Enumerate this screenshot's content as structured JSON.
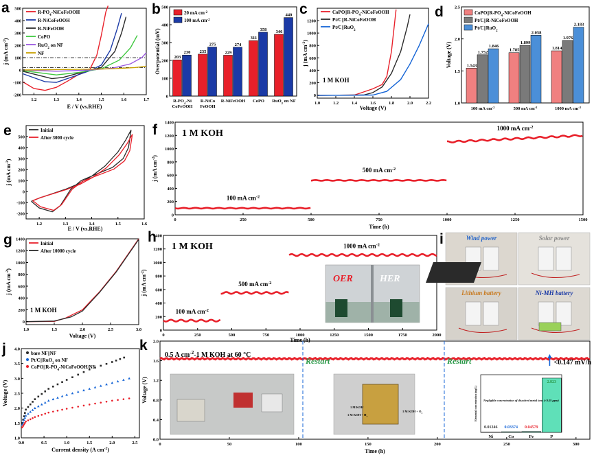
{
  "colors": {
    "red": "#e8202a",
    "navy": "#1b3aa6",
    "black": "#2b2b2b",
    "green": "#40c840",
    "violet": "#9b59e0",
    "olive": "#c8a000",
    "blue": "#1464d6",
    "grey": "#666666",
    "pink": "#f08080",
    "steel": "#7a7a7a",
    "sky": "#4b8fd8"
  },
  "panel_letters": {
    "a": "a",
    "b": "b",
    "c": "c",
    "d": "d",
    "e": "e",
    "f": "f",
    "g": "g",
    "h": "h",
    "i": "i",
    "j": "j",
    "k": "k"
  },
  "chart_data": [
    {
      "panel": "a",
      "type": "line",
      "xlabel": "E / V (vs.RHE)",
      "ylabel": "j (mA cm⁻²)",
      "xlim": [
        1.15,
        1.7
      ],
      "ylim": [
        -200,
        500
      ],
      "xticks": [
        "1.2",
        "1.3",
        "1.4",
        "1.5",
        "1.6",
        "1.7"
      ],
      "yticks": [
        "-200",
        "-100",
        "0",
        "100",
        "200",
        "300",
        "400",
        "500"
      ],
      "series": [
        {
          "name": "R-PO₄-NiCoFeOOH",
          "color": "#e8202a",
          "points": [
            [
              1.15,
              -95
            ],
            [
              1.2,
              -150
            ],
            [
              1.25,
              -165
            ],
            [
              1.3,
              -140
            ],
            [
              1.35,
              -90
            ],
            [
              1.4,
              -35
            ],
            [
              1.45,
              10
            ],
            [
              1.48,
              120
            ],
            [
              1.5,
              280
            ],
            [
              1.52,
              470
            ],
            [
              1.53,
              520
            ]
          ]
        },
        {
          "name": "R-NiCoFeOOH",
          "color": "#1b3aa6",
          "points": [
            [
              1.15,
              -30
            ],
            [
              1.25,
              -95
            ],
            [
              1.3,
              -100
            ],
            [
              1.38,
              -50
            ],
            [
              1.45,
              -5
            ],
            [
              1.5,
              40
            ],
            [
              1.54,
              160
            ],
            [
              1.57,
              330
            ],
            [
              1.59,
              460
            ]
          ]
        },
        {
          "name": "R-NiFeOOH",
          "color": "#2b2b2b",
          "points": [
            [
              1.15,
              -10
            ],
            [
              1.28,
              -70
            ],
            [
              1.33,
              -60
            ],
            [
              1.42,
              -15
            ],
            [
              1.5,
              20
            ],
            [
              1.56,
              150
            ],
            [
              1.59,
              300
            ],
            [
              1.61,
              430
            ]
          ]
        },
        {
          "name": "CoPO",
          "color": "#40c840",
          "points": [
            [
              1.15,
              -5
            ],
            [
              1.3,
              -40
            ],
            [
              1.4,
              -20
            ],
            [
              1.5,
              10
            ],
            [
              1.58,
              80
            ],
            [
              1.63,
              180
            ],
            [
              1.66,
              280
            ]
          ]
        },
        {
          "name": "RuO₂ on NF",
          "color": "#9b59e0",
          "points": [
            [
              1.15,
              0
            ],
            [
              1.3,
              -10
            ],
            [
              1.45,
              0
            ],
            [
              1.55,
              15
            ],
            [
              1.63,
              50
            ],
            [
              1.68,
              100
            ],
            [
              1.7,
              140
            ]
          ]
        },
        {
          "name": "NF",
          "color": "#c8a000",
          "points": [
            [
              1.15,
              0
            ],
            [
              1.4,
              5
            ],
            [
              1.55,
              10
            ],
            [
              1.65,
              20
            ],
            [
              1.7,
              30
            ]
          ]
        }
      ],
      "reference_lines": [
        100,
        20
      ]
    },
    {
      "panel": "b",
      "type": "bar",
      "ylabel": "Overpotential (mV)",
      "ylim": [
        0,
        500
      ],
      "yticks": [
        "0",
        "100",
        "200",
        "300",
        "400",
        "500"
      ],
      "categories": [
        "R-PO₄-Ni\nCoFeOOH",
        "R-NiCo\nFeOOH",
        "R-NiFeOOH",
        "CoPO",
        "RuO₂ on NF"
      ],
      "series": [
        {
          "name": "20 mA cm⁻²",
          "color": "#e8202a",
          "values": [
            203,
            235,
            229,
            311,
            346
          ]
        },
        {
          "name": "100 mA cm⁻²",
          "color": "#1b3aa6",
          "values": [
            230,
            275,
            274,
            358,
            440
          ]
        }
      ],
      "labels": [
        [
          "203",
          "230"
        ],
        [
          "235",
          "275"
        ],
        [
          "229",
          "274"
        ],
        [
          "311",
          "358"
        ],
        [
          "346",
          "440"
        ]
      ]
    },
    {
      "panel": "c",
      "type": "line",
      "xlabel": "Voltage (V)",
      "ylabel": "j (mA cm⁻²)",
      "xlim": [
        1.0,
        2.2
      ],
      "ylim": [
        -50,
        1400
      ],
      "xticks": [
        "1.0",
        "1.2",
        "1.4",
        "1.6",
        "1.8",
        "2.0",
        "2.2"
      ],
      "yticks": [
        "0",
        "200",
        "400",
        "600",
        "800",
        "1000",
        "1200"
      ],
      "annotation": "1 M KOH",
      "series": [
        {
          "name": "CoPO||R-PO₄-NiCoFeOOH",
          "color": "#e8202a",
          "points": [
            [
              1.0,
              -5
            ],
            [
              1.4,
              0
            ],
            [
              1.5,
              50
            ],
            [
              1.6,
              100
            ],
            [
              1.7,
              170
            ],
            [
              1.75,
              300
            ],
            [
              1.8,
              700
            ],
            [
              1.83,
              1100
            ],
            [
              1.85,
              1380
            ]
          ]
        },
        {
          "name": "Pt/C||R-NiCoFeOOH",
          "color": "#2b2b2b",
          "points": [
            [
              1.0,
              -5
            ],
            [
              1.5,
              0
            ],
            [
              1.6,
              40
            ],
            [
              1.7,
              130
            ],
            [
              1.8,
              350
            ],
            [
              1.9,
              700
            ],
            [
              1.97,
              1100
            ],
            [
              2.0,
              1300
            ]
          ]
        },
        {
          "name": "Pt/C||RuO₂",
          "color": "#1464d6",
          "points": [
            [
              1.0,
              -5
            ],
            [
              1.6,
              0
            ],
            [
              1.75,
              60
            ],
            [
              1.9,
              250
            ],
            [
              2.0,
              500
            ],
            [
              2.1,
              800
            ],
            [
              2.2,
              1150
            ]
          ]
        }
      ]
    },
    {
      "panel": "d",
      "type": "bar",
      "ylabel": "Voltage (V)",
      "ylim": [
        1.0,
        2.5
      ],
      "yticks": [
        "1.0",
        "1.5",
        "2.0",
        "2.5"
      ],
      "categories": [
        "100 mA cm⁻²",
        "500 mA cm⁻²",
        "1000 mA cm⁻²"
      ],
      "series": [
        {
          "name": "CoPO||R-PO₄-NiCoFeOOH",
          "color": "#f08080",
          "values": [
            1.543,
            1.785,
            1.814
          ]
        },
        {
          "name": "Pt/C||R-NiCoFeOOH",
          "color": "#7a7a7a",
          "values": [
            1.752,
            1.899,
            1.976
          ]
        },
        {
          "name": "Pt/C||RuO₂",
          "color": "#4b8fd8",
          "values": [
            1.846,
            2.058,
            2.183
          ]
        }
      ],
      "labels": [
        [
          "1.543",
          "1.752",
          "1.846"
        ],
        [
          "1.785",
          "1.899",
          "2.058"
        ],
        [
          "1.814",
          "1.976",
          "2.183"
        ]
      ]
    },
    {
      "panel": "e",
      "type": "line",
      "xlabel": "E / V (vs.RHE)",
      "ylabel": "j (mA cm⁻²)",
      "xlim": [
        1.15,
        1.6
      ],
      "ylim": [
        -250,
        600
      ],
      "xticks": [
        "1.2",
        "1.3",
        "1.4",
        "1.5",
        "1.6"
      ],
      "yticks": [
        "-200",
        "-100",
        "0",
        "100",
        "200",
        "300",
        "400",
        "500"
      ],
      "series": [
        {
          "name": "Initial",
          "color": "#2b2b2b"
        },
        {
          "name": "After 3000 cycle",
          "color": "#e8202a"
        }
      ]
    },
    {
      "panel": "f",
      "type": "line",
      "xlabel": "Time (h)",
      "ylabel": "j (mA cm⁻²)",
      "annotation": "1 M KOH",
      "xlim": [
        0,
        1500
      ],
      "ylim": [
        0,
        1400
      ],
      "xticks": [
        "0",
        "250",
        "500",
        "750",
        "1000",
        "1250",
        "1500"
      ],
      "yticks": [
        "0",
        "200",
        "400",
        "600",
        "800",
        "1000",
        "1200",
        "1400"
      ],
      "segments": [
        {
          "label": "100 mA cm⁻²",
          "x": [
            0,
            500
          ],
          "value": 100
        },
        {
          "label": "500 mA cm⁻²",
          "x": [
            500,
            1000
          ],
          "value": 520
        },
        {
          "label": "1000 mA cm⁻²",
          "x": [
            1000,
            1500
          ],
          "value": 1100
        }
      ]
    },
    {
      "panel": "g",
      "type": "line",
      "xlabel": "Voltage (V)",
      "ylabel": "j (mA cm⁻²)",
      "annotation": "1 M KOH",
      "xlim": [
        1.0,
        3.0
      ],
      "ylim": [
        -50,
        1400
      ],
      "xticks": [
        "1.0",
        "1.5",
        "2.0",
        "2.5",
        "3.0"
      ],
      "yticks": [
        "0",
        "200",
        "400",
        "600",
        "800",
        "1000",
        "1200",
        "1400"
      ],
      "series": [
        {
          "name": "Initial",
          "color": "#e8202a",
          "points": [
            [
              1.0,
              0
            ],
            [
              1.5,
              5
            ],
            [
              1.7,
              60
            ],
            [
              2.0,
              200
            ],
            [
              2.3,
              500
            ],
            [
              2.6,
              850
            ],
            [
              3.0,
              1400
            ]
          ]
        },
        {
          "name": "After 10000 cycle",
          "color": "#2b2b2b",
          "points": [
            [
              1.0,
              0
            ],
            [
              1.5,
              10
            ],
            [
              1.8,
              80
            ],
            [
              2.0,
              180
            ],
            [
              2.3,
              490
            ],
            [
              2.6,
              840
            ],
            [
              3.0,
              1390
            ]
          ]
        }
      ]
    },
    {
      "panel": "h",
      "type": "line",
      "xlabel": "Time (h)",
      "ylabel": "j (mA cm⁻²)",
      "annotation": "1 M KOH",
      "xlim": [
        0,
        2000
      ],
      "ylim": [
        0,
        1400
      ],
      "xticks": [
        "0",
        "250",
        "500",
        "750",
        "1000",
        "1250",
        "1500",
        "1750",
        "2000"
      ],
      "yticks": [
        "0",
        "200",
        "400",
        "600",
        "800",
        "1000",
        "1200",
        "1400"
      ],
      "segments": [
        {
          "label": "100 mA cm⁻²",
          "x": [
            0,
            420
          ],
          "value": 140
        },
        {
          "label": "500 mA cm⁻²",
          "x": [
            420,
            920
          ],
          "value": 550
        },
        {
          "label": "1000 mA cm⁻²",
          "x": [
            920,
            2000
          ],
          "value": 1110
        }
      ],
      "inset_labels": [
        "OER",
        "HER"
      ]
    },
    {
      "panel": "j",
      "type": "scatter",
      "xlabel": "Current density (A cm⁻²)",
      "ylabel": "Voltage (V)",
      "xlim": [
        0,
        2.6
      ],
      "ylim": [
        1.0,
        4.0
      ],
      "xticks": [
        "0.0",
        "0.5",
        "1.0",
        "1.5",
        "2.0",
        "2.5"
      ],
      "yticks": [
        "1.0",
        "1.5",
        "2.0",
        "2.5",
        "3.0",
        "3.5",
        "4.0"
      ],
      "series": [
        {
          "name": "bare NF||NF",
          "color": "#2b2b2b",
          "points": [
            [
              0.02,
              1.5
            ],
            [
              0.1,
              1.95
            ],
            [
              0.3,
              2.3
            ],
            [
              0.6,
              2.65
            ],
            [
              1.0,
              2.95
            ],
            [
              1.5,
              3.3
            ],
            [
              2.0,
              3.55
            ],
            [
              2.35,
              3.75
            ]
          ]
        },
        {
          "name": "Pt/C||RuO₂ on NF",
          "color": "#1464d6",
          "points": [
            [
              0.02,
              1.45
            ],
            [
              0.1,
              1.75
            ],
            [
              0.3,
              2.0
            ],
            [
              0.6,
              2.25
            ],
            [
              1.0,
              2.45
            ],
            [
              1.5,
              2.65
            ],
            [
              2.0,
              2.85
            ],
            [
              2.5,
              3.05
            ]
          ]
        },
        {
          "name": "CoPO||R-PO₄-NiCoFeOOH/NF",
          "color": "#e8202a",
          "points": [
            [
              0.02,
              1.35
            ],
            [
              0.1,
              1.55
            ],
            [
              0.3,
              1.7
            ],
            [
              0.6,
              1.85
            ],
            [
              1.0,
              1.98
            ],
            [
              1.5,
              2.12
            ],
            [
              2.0,
              2.25
            ],
            [
              2.5,
              2.35
            ]
          ]
        }
      ]
    },
    {
      "panel": "k",
      "type": "line",
      "xlabel": "Time (h)",
      "ylabel": "Voltage (V)",
      "title": "0.5 A cm⁻²-1 M KOH at 60 °C",
      "xlim": [
        0,
        310
      ],
      "ylim": [
        0.0,
        2.0
      ],
      "xticks": [
        "0",
        "50",
        "100",
        "150",
        "200",
        "250",
        "300"
      ],
      "yticks": [
        "0.0",
        "0.4",
        "0.8",
        "1.2",
        "1.6",
        "2.0"
      ],
      "value": 1.64,
      "restarts": [
        103,
        205
      ],
      "restart_label": "Restart",
      "rate_label": "<0.147 mV/h",
      "inset": {
        "type": "bar",
        "ylabel": "Elemental concentration (mg/L)",
        "note": "Negligible concentration of dissolved metal ions (<0.05 ppm)",
        "categories": [
          "Ni",
          "Co",
          "Fe",
          "P"
        ],
        "values": [
          0.01246,
          0.03374,
          0.04579,
          2.823
        ],
        "labels": [
          "0.01246",
          "0.03374",
          "0.04579",
          "2.823"
        ]
      },
      "photo_labels": [
        "1 M KOH",
        "1 M KOH + H₂",
        "1 M KOH + O₂"
      ]
    }
  ],
  "panel_i": {
    "captions": [
      "Wind power",
      "Solar power",
      "Lithium battery",
      "Ni-MH battery"
    ]
  }
}
